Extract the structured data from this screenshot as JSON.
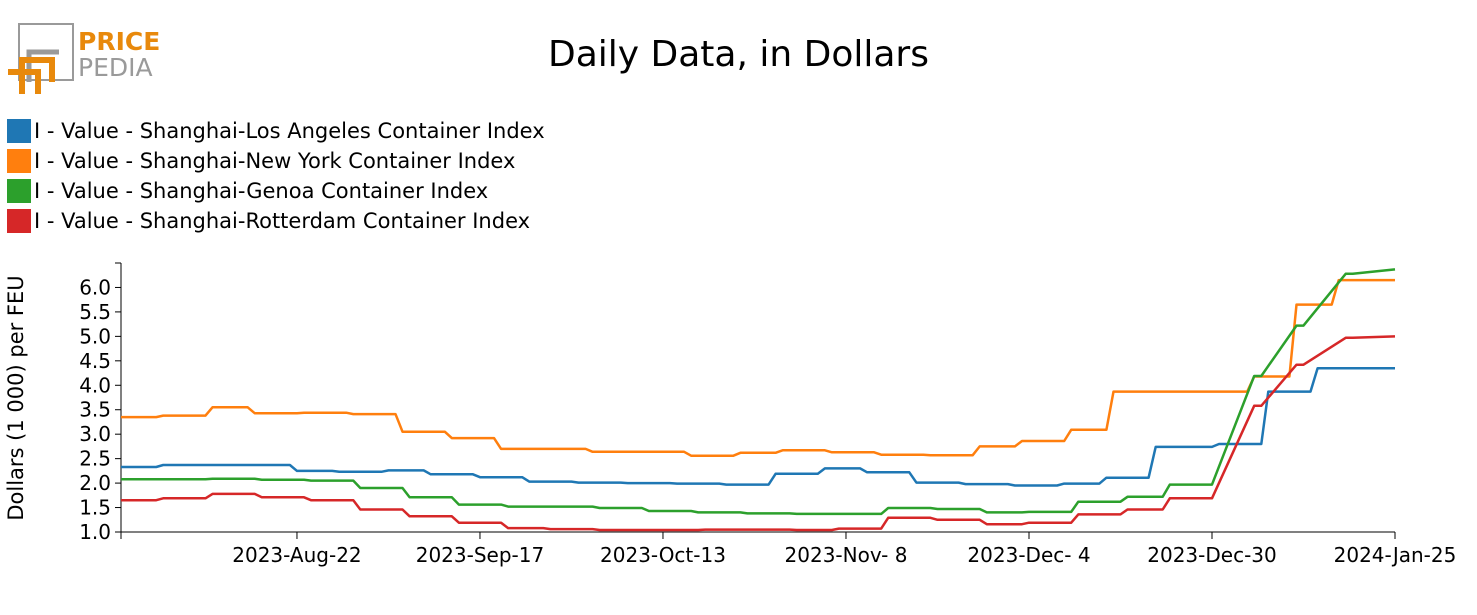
{
  "logo": {
    "line1": "PRICE",
    "line2": "PEDIA",
    "colors": {
      "orange": "#e8890c",
      "gray": "#9a9a9a"
    }
  },
  "chart_data": {
    "type": "line",
    "title": "Daily Data, in Dollars",
    "xlabel": "",
    "ylabel": "Dollars (1 000) per FEU",
    "ylim": [
      1.0,
      6.5
    ],
    "yticks": [
      "1.0",
      "1.5",
      "2.0",
      "2.5",
      "3.0",
      "3.5",
      "4.0",
      "4.5",
      "5.0",
      "5.5",
      "6.0"
    ],
    "x_range": [
      "2023-Jul-28",
      "2024-Jan-25"
    ],
    "xticks": [
      {
        "date": "2023-Aug-22",
        "label": "2023-Aug-22"
      },
      {
        "date": "2023-Sep-17",
        "label": "2023-Sep-17"
      },
      {
        "date": "2023-Oct-13",
        "label": "2023-Oct-13"
      },
      {
        "date": "2023-Nov-08",
        "label": "2023-Nov- 8"
      },
      {
        "date": "2023-Dec-04",
        "label": "2023-Dec- 4"
      },
      {
        "date": "2023-Dec-30",
        "label": "2023-Dec-30"
      },
      {
        "date": "2024-Jan-25",
        "label": "2024-Jan-25"
      }
    ],
    "grid": false,
    "legend_position": "top-left",
    "series": [
      {
        "name": "I - Value - Shanghai-Los Angeles Container Index",
        "color": "#1f77b4",
        "x": [
          "2023-Jul-28",
          "2023-Aug-02",
          "2023-Aug-03",
          "2023-Aug-14",
          "2023-Aug-15",
          "2023-Aug-21",
          "2023-Aug-22",
          "2023-Aug-27",
          "2023-Aug-28",
          "2023-Sep-03",
          "2023-Sep-04",
          "2023-Sep-09",
          "2023-Sep-10",
          "2023-Sep-16",
          "2023-Sep-17",
          "2023-Sep-23",
          "2023-Sep-24",
          "2023-Sep-30",
          "2023-Oct-01",
          "2023-Oct-07",
          "2023-Oct-08",
          "2023-Oct-14",
          "2023-Oct-15",
          "2023-Oct-21",
          "2023-Oct-22",
          "2023-Oct-28",
          "2023-Oct-29",
          "2023-Nov-04",
          "2023-Nov-05",
          "2023-Nov-10",
          "2023-Nov-11",
          "2023-Nov-17",
          "2023-Nov-18",
          "2023-Nov-24",
          "2023-Nov-25",
          "2023-Dec-01",
          "2023-Dec-02",
          "2023-Dec-08",
          "2023-Dec-09",
          "2023-Dec-14",
          "2023-Dec-15",
          "2023-Dec-21",
          "2023-Dec-22",
          "2023-Dec-28",
          "2023-Dec-29",
          "2023-Dec-30",
          "2023-Dec-31",
          "2024-Jan-06",
          "2024-Jan-07",
          "2024-Jan-13",
          "2024-Jan-14",
          "2024-Jan-19",
          "2024-Jan-20",
          "2024-Jan-25"
        ],
        "y": [
          2.33,
          2.33,
          2.37,
          2.37,
          2.37,
          2.37,
          2.25,
          2.25,
          2.23,
          2.23,
          2.26,
          2.26,
          2.18,
          2.18,
          2.12,
          2.12,
          2.03,
          2.03,
          2.01,
          2.01,
          2.0,
          2.0,
          1.99,
          1.99,
          1.97,
          1.97,
          2.19,
          2.19,
          2.3,
          2.3,
          2.22,
          2.22,
          2.01,
          2.01,
          1.98,
          1.98,
          1.95,
          1.95,
          1.99,
          1.99,
          2.11,
          2.11,
          2.74,
          2.74,
          2.74,
          2.74,
          2.8,
          2.8,
          3.87,
          3.87,
          4.35,
          4.35,
          4.35,
          4.35
        ]
      },
      {
        "name": "I - Value - Shanghai-New York Container Index",
        "color": "#ff7f0e",
        "x": [
          "2023-Jul-28",
          "2023-Aug-02",
          "2023-Aug-03",
          "2023-Aug-09",
          "2023-Aug-10",
          "2023-Aug-15",
          "2023-Aug-16",
          "2023-Aug-22",
          "2023-Aug-23",
          "2023-Aug-29",
          "2023-Aug-30",
          "2023-Sep-05",
          "2023-Sep-06",
          "2023-Sep-12",
          "2023-Sep-13",
          "2023-Sep-19",
          "2023-Sep-20",
          "2023-Oct-02",
          "2023-Oct-03",
          "2023-Oct-16",
          "2023-Oct-17",
          "2023-Oct-23",
          "2023-Oct-24",
          "2023-Oct-29",
          "2023-Oct-30",
          "2023-Nov-05",
          "2023-Nov-06",
          "2023-Nov-12",
          "2023-Nov-13",
          "2023-Nov-19",
          "2023-Nov-20",
          "2023-Nov-26",
          "2023-Nov-27",
          "2023-Dec-02",
          "2023-Dec-03",
          "2023-Dec-09",
          "2023-Dec-10",
          "2023-Dec-15",
          "2023-Dec-16",
          "2023-Dec-22",
          "2023-Dec-23",
          "2024-Jan-04",
          "2024-Jan-05",
          "2024-Jan-10",
          "2024-Jan-11",
          "2024-Jan-16",
          "2024-Jan-17",
          "2024-Jan-25"
        ],
        "y": [
          3.35,
          3.35,
          3.38,
          3.38,
          3.55,
          3.55,
          3.43,
          3.43,
          3.44,
          3.44,
          3.41,
          3.41,
          3.05,
          3.05,
          2.92,
          2.92,
          2.7,
          2.7,
          2.64,
          2.64,
          2.56,
          2.56,
          2.62,
          2.62,
          2.67,
          2.67,
          2.63,
          2.63,
          2.58,
          2.58,
          2.57,
          2.57,
          2.75,
          2.75,
          2.86,
          2.86,
          3.09,
          3.09,
          3.87,
          3.87,
          3.87,
          3.87,
          4.18,
          4.18,
          5.65,
          5.65,
          6.15,
          6.15
        ]
      },
      {
        "name": "I - Value - Shanghai-Genoa Container Index",
        "color": "#2ca02c",
        "x": [
          "2023-Jul-28",
          "2023-Aug-09",
          "2023-Aug-10",
          "2023-Aug-16",
          "2023-Aug-17",
          "2023-Aug-23",
          "2023-Aug-24",
          "2023-Aug-30",
          "2023-Aug-31",
          "2023-Sep-06",
          "2023-Sep-07",
          "2023-Sep-13",
          "2023-Sep-14",
          "2023-Sep-20",
          "2023-Sep-21",
          "2023-Oct-03",
          "2023-Oct-04",
          "2023-Oct-10",
          "2023-Oct-11",
          "2023-Oct-17",
          "2023-Oct-18",
          "2023-Oct-24",
          "2023-Oct-25",
          "2023-Oct-31",
          "2023-Nov-01",
          "2023-Nov-13",
          "2023-Nov-14",
          "2023-Nov-20",
          "2023-Nov-21",
          "2023-Nov-27",
          "2023-Nov-28",
          "2023-Dec-03",
          "2023-Dec-04",
          "2023-Dec-10",
          "2023-Dec-11",
          "2023-Dec-17",
          "2023-Dec-18",
          "2023-Dec-23",
          "2023-Dec-24",
          "2023-Dec-30",
          "2024-Jan-05",
          "2024-Jan-06",
          "2024-Jan-11",
          "2024-Jan-12",
          "2024-Jan-18",
          "2024-Jan-19",
          "2024-Jan-25"
        ],
        "y": [
          2.08,
          2.08,
          2.09,
          2.09,
          2.07,
          2.07,
          2.05,
          2.05,
          1.9,
          1.9,
          1.71,
          1.71,
          1.56,
          1.56,
          1.52,
          1.52,
          1.49,
          1.49,
          1.43,
          1.43,
          1.4,
          1.4,
          1.38,
          1.38,
          1.37,
          1.37,
          1.49,
          1.49,
          1.47,
          1.47,
          1.4,
          1.4,
          1.41,
          1.41,
          1.62,
          1.62,
          1.72,
          1.72,
          1.97,
          1.97,
          4.19,
          4.19,
          5.22,
          5.22,
          6.28,
          6.28,
          6.37
        ]
      },
      {
        "name": "I - Value - Shanghai-Rotterdam Container Index",
        "color": "#d62728",
        "x": [
          "2023-Jul-28",
          "2023-Aug-02",
          "2023-Aug-03",
          "2023-Aug-09",
          "2023-Aug-10",
          "2023-Aug-16",
          "2023-Aug-17",
          "2023-Aug-23",
          "2023-Aug-24",
          "2023-Aug-30",
          "2023-Aug-31",
          "2023-Sep-06",
          "2023-Sep-07",
          "2023-Sep-13",
          "2023-Sep-14",
          "2023-Sep-20",
          "2023-Sep-21",
          "2023-Sep-26",
          "2023-Sep-27",
          "2023-Oct-03",
          "2023-Oct-04",
          "2023-Oct-18",
          "2023-Oct-19",
          "2023-Oct-31",
          "2023-Nov-01",
          "2023-Nov-06",
          "2023-Nov-07",
          "2023-Nov-13",
          "2023-Nov-14",
          "2023-Nov-20",
          "2023-Nov-21",
          "2023-Nov-27",
          "2023-Nov-28",
          "2023-Dec-03",
          "2023-Dec-04",
          "2023-Dec-10",
          "2023-Dec-11",
          "2023-Dec-17",
          "2023-Dec-18",
          "2023-Dec-23",
          "2023-Dec-24",
          "2023-Dec-30",
          "2024-Jan-05",
          "2024-Jan-06",
          "2024-Jan-11",
          "2024-Jan-12",
          "2024-Jan-18",
          "2024-Jan-19",
          "2024-Jan-25"
        ],
        "y": [
          1.65,
          1.65,
          1.69,
          1.69,
          1.78,
          1.78,
          1.71,
          1.71,
          1.65,
          1.65,
          1.46,
          1.46,
          1.32,
          1.32,
          1.19,
          1.19,
          1.08,
          1.08,
          1.06,
          1.06,
          1.04,
          1.04,
          1.05,
          1.05,
          1.04,
          1.04,
          1.07,
          1.07,
          1.29,
          1.29,
          1.25,
          1.25,
          1.16,
          1.16,
          1.19,
          1.19,
          1.36,
          1.36,
          1.46,
          1.46,
          1.69,
          1.69,
          3.58,
          3.58,
          4.42,
          4.42,
          4.97,
          4.97,
          5.0
        ]
      }
    ]
  }
}
